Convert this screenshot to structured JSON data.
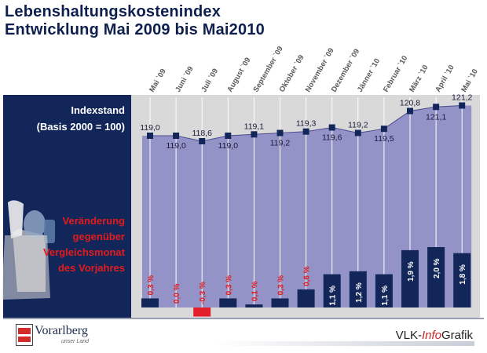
{
  "title": {
    "line1": "Lebenshaltungskostenindex",
    "line2": "Entwicklung Mai 2009 bis Mai2010"
  },
  "panel": {
    "index_label_1": "Indexstand",
    "index_label_2": "(Basis 2000 = 100)",
    "change_label_1": "Veränderung",
    "change_label_2": "gegenüber",
    "change_label_3": "Vergleichsmonat",
    "change_label_4": "des Vorjahres"
  },
  "colors": {
    "dark_navy": "#13265a",
    "band_purple": "#9393c8",
    "grey_background": "#d9d9d9",
    "red_accent": "#e31b1b",
    "negative_bar": "#e3202a"
  },
  "footer": {
    "state_name": "Vorarlberg",
    "state_sub": "unser Land",
    "brand_prefix": "VLK-",
    "brand_info": "Info",
    "brand_suffix": "Grafik"
  },
  "chart_data": {
    "type": "line",
    "categories": [
      "Mai `09",
      "Juni `09",
      "Juli `09",
      "August `09",
      "September `09",
      "Oktober `09",
      "November `09",
      "Dezember `09",
      "Jänner `10",
      "Februar `10",
      "März `10",
      "April `10",
      "Mai `10"
    ],
    "series": [
      {
        "values": [
          119.0,
          119.0,
          118.6,
          119.0,
          119.1,
          119.2,
          119.3,
          119.6,
          119.2,
          119.5,
          120.8,
          121.1,
          121.2
        ]
      },
      {
        "type": "bar",
        "values": [
          0.3,
          0.0,
          -0.3,
          0.3,
          0.1,
          0.3,
          0.6,
          1.1,
          1.2,
          1.1,
          1.9,
          2.0,
          1.8
        ]
      }
    ],
    "line_value_labels": [
      "119,0",
      "119,0",
      "118,6",
      "119,0",
      "119,1",
      "119,2",
      "119,3",
      "119,6",
      "119,2",
      "119,5",
      "120,8",
      "121,1",
      "121,2"
    ],
    "bar_value_labels": [
      "0,3 %",
      "0,0 %",
      "-0,3 %",
      "0,3 %",
      "0,1 %",
      "0,3 %",
      "0,6 %",
      "1,1 %",
      "1,2 %",
      "1,1 %",
      "1,9 %",
      "2,0 %",
      "1,8 %"
    ]
  }
}
